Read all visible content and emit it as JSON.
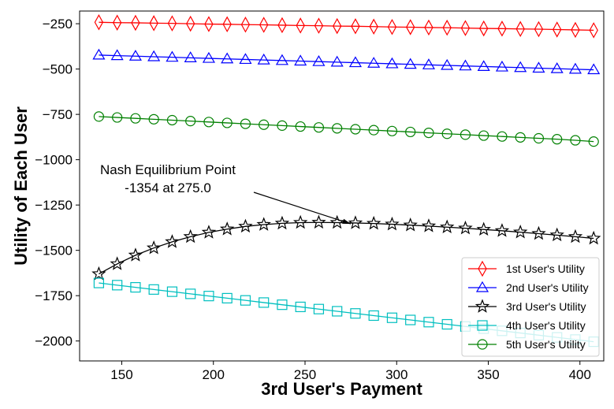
{
  "chart_data": {
    "type": "line",
    "title": "",
    "xlabel": "3rd User's Payment",
    "ylabel": "Utility of Each User",
    "xlim": [
      127,
      413
    ],
    "ylim": [
      -2110,
      -180
    ],
    "xticks": [
      150,
      200,
      250,
      300,
      350,
      400
    ],
    "yticks": [
      -250,
      -500,
      -750,
      -1000,
      -1250,
      -1500,
      -1750,
      -2000
    ],
    "grid": false,
    "legend_position": "lower-right",
    "x": [
      137.5,
      147.5,
      157.5,
      167.5,
      177.5,
      187.5,
      197.5,
      207.5,
      217.5,
      227.5,
      237.5,
      247.5,
      257.5,
      267.5,
      277.5,
      287.5,
      297.5,
      307.5,
      317.5,
      327.5,
      337.5,
      347.5,
      357.5,
      367.5,
      377.5,
      387.5,
      397.5,
      407.5
    ],
    "series": [
      {
        "name": "1st User's Utility",
        "color": "#ff0000",
        "marker": "diamond",
        "values": [
          -242,
          -244,
          -245,
          -247,
          -248,
          -250,
          -252,
          -253,
          -255,
          -256,
          -258,
          -260,
          -261,
          -263,
          -264,
          -266,
          -268,
          -269,
          -271,
          -272,
          -274,
          -276,
          -277,
          -279,
          -280,
          -282,
          -284,
          -286
        ]
      },
      {
        "name": "2nd User's Utility",
        "color": "#0000ff",
        "marker": "triangle",
        "values": [
          -423,
          -426,
          -429,
          -432,
          -435,
          -438,
          -441,
          -444,
          -447,
          -450,
          -453,
          -456,
          -459,
          -462,
          -465,
          -468,
          -471,
          -474,
          -477,
          -480,
          -483,
          -486,
          -489,
          -492,
          -495,
          -498,
          -501,
          -504
        ]
      },
      {
        "name": "3rd User's Utility",
        "color": "#000000",
        "marker": "star",
        "values": [
          -1630,
          -1575,
          -1527,
          -1487,
          -1453,
          -1425,
          -1401,
          -1383,
          -1368,
          -1358,
          -1351,
          -1347,
          -1346,
          -1347,
          -1349,
          -1352,
          -1356,
          -1361,
          -1366,
          -1372,
          -1378,
          -1385,
          -1392,
          -1400,
          -1408,
          -1416,
          -1425,
          -1434
        ]
      },
      {
        "name": "4th User's Utility",
        "color": "#00bfbf",
        "marker": "square",
        "values": [
          -1680,
          -1692,
          -1704,
          -1716,
          -1728,
          -1740,
          -1752,
          -1764,
          -1776,
          -1788,
          -1800,
          -1812,
          -1824,
          -1836,
          -1848,
          -1860,
          -1872,
          -1884,
          -1896,
          -1908,
          -1920,
          -1932,
          -1944,
          -1956,
          -1968,
          -1980,
          -1992,
          -2004
        ]
      },
      {
        "name": "5th User's Utility",
        "color": "#008000",
        "marker": "circle",
        "values": [
          -762,
          -767,
          -772,
          -777,
          -782,
          -787,
          -792,
          -797,
          -802,
          -807,
          -812,
          -817,
          -822,
          -827,
          -832,
          -837,
          -842,
          -847,
          -852,
          -857,
          -862,
          -867,
          -872,
          -877,
          -882,
          -887,
          -893,
          -900
        ]
      }
    ],
    "annotation": {
      "line1": "Nash Equilibrium Point",
      "line2": "-1354 at 275.0",
      "point_x": 275.0,
      "point_y": -1354
    }
  }
}
